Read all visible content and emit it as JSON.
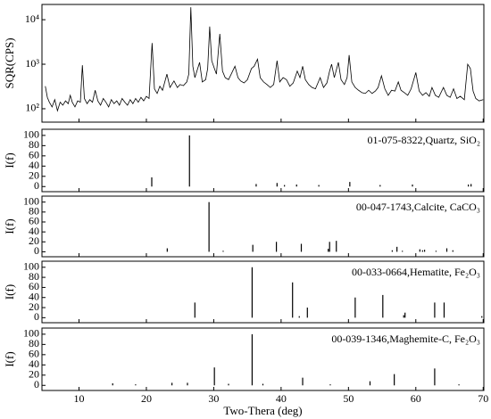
{
  "chart_data": [
    {
      "type": "line",
      "ylabel": "SQR(CPS)",
      "color": "#000000",
      "log_y": true,
      "xlim": [
        4.5,
        70.1
      ],
      "xticks": [
        10,
        20,
        30,
        40,
        50,
        60,
        70
      ],
      "ylim": [
        50,
        22000
      ],
      "yticks": [
        {
          "value": 100,
          "label": "10²"
        },
        {
          "value": 1000,
          "label": "10³"
        },
        {
          "value": 10000,
          "label": "10⁴"
        }
      ],
      "x": [
        5.0,
        5.3,
        5.6,
        6.0,
        6.4,
        6.8,
        7.2,
        7.6,
        8.0,
        8.4,
        8.7,
        9.0,
        9.4,
        9.8,
        10.2,
        10.5,
        10.8,
        11.2,
        11.6,
        12.0,
        12.4,
        12.8,
        13.2,
        13.6,
        14.0,
        14.4,
        14.8,
        15.2,
        15.6,
        16.0,
        16.4,
        16.8,
        17.2,
        17.6,
        18.0,
        18.4,
        18.8,
        19.2,
        19.6,
        20.0,
        20.4,
        20.85,
        21.2,
        21.6,
        22.0,
        22.4,
        23.05,
        23.5,
        24.1,
        24.6,
        25.0,
        25.5,
        26.0,
        26.3,
        26.6,
        26.9,
        27.2,
        27.9,
        28.3,
        28.8,
        29.1,
        29.4,
        29.7,
        30.1,
        30.4,
        30.9,
        31.3,
        31.7,
        32.2,
        32.6,
        33.15,
        33.6,
        34.0,
        34.5,
        35.0,
        35.6,
        36.0,
        36.5,
        36.9,
        37.4,
        37.9,
        38.4,
        38.9,
        39.4,
        39.8,
        40.3,
        40.8,
        41.3,
        41.8,
        42.4,
        42.8,
        43.2,
        43.6,
        44.1,
        44.6,
        45.1,
        45.8,
        46.3,
        46.8,
        47.2,
        47.5,
        47.9,
        48.5,
        48.9,
        49.4,
        49.8,
        50.1,
        50.5,
        51.0,
        51.5,
        52.0,
        52.5,
        53.0,
        53.5,
        54.0,
        54.4,
        54.9,
        55.4,
        55.9,
        56.4,
        56.9,
        57.4,
        57.8,
        58.3,
        58.8,
        59.3,
        60.0,
        60.5,
        61.0,
        61.5,
        62.0,
        62.4,
        62.9,
        63.4,
        64.1,
        64.6,
        65.1,
        65.6,
        66.1,
        66.6,
        67.2,
        67.7,
        68.1,
        68.5,
        68.9,
        69.4,
        70.0
      ],
      "values": [
        320,
        180,
        140,
        110,
        160,
        90,
        140,
        120,
        150,
        130,
        200,
        140,
        110,
        150,
        140,
        950,
        170,
        130,
        160,
        140,
        260,
        150,
        120,
        170,
        140,
        110,
        160,
        130,
        150,
        120,
        170,
        140,
        120,
        160,
        130,
        170,
        140,
        180,
        150,
        190,
        170,
        3000,
        280,
        220,
        320,
        260,
        600,
        300,
        420,
        300,
        350,
        330,
        400,
        600,
        19000,
        900,
        500,
        1100,
        400,
        450,
        800,
        7000,
        1200,
        800,
        600,
        4800,
        700,
        500,
        450,
        600,
        900,
        500,
        420,
        380,
        450,
        800,
        900,
        1300,
        500,
        400,
        350,
        300,
        350,
        1200,
        400,
        500,
        450,
        320,
        380,
        700,
        500,
        900,
        450,
        350,
        300,
        280,
        500,
        300,
        380,
        700,
        1000,
        500,
        1100,
        450,
        350,
        500,
        1600,
        400,
        300,
        260,
        230,
        220,
        260,
        220,
        250,
        300,
        550,
        280,
        200,
        260,
        250,
        400,
        260,
        230,
        200,
        280,
        650,
        250,
        200,
        230,
        190,
        300,
        200,
        180,
        300,
        200,
        180,
        280,
        170,
        190,
        160,
        1000,
        800,
        250,
        170,
        150,
        160
      ]
    },
    {
      "type": "stick",
      "ylabel": "I(f)",
      "label": "01-075-8322,Quartz, SiO₂",
      "color": "#000000",
      "xlim": [
        4.5,
        70.1
      ],
      "xticks": [
        10,
        20,
        30,
        40,
        50,
        60,
        70
      ],
      "ylim": [
        -10,
        112
      ],
      "yticks": [
        0,
        20,
        40,
        60,
        80,
        100
      ],
      "x": [
        20.8,
        26.4,
        36.3,
        39.4,
        40.5,
        42.3,
        45.6,
        50.2,
        54.7,
        59.5,
        67.8,
        68.2
      ],
      "values": [
        18,
        100,
        5,
        7,
        3,
        4,
        3,
        9,
        3,
        4,
        4,
        5
      ]
    },
    {
      "type": "stick",
      "ylabel": "I(f)",
      "label": "00-047-1743,Calcite, CaCO₃",
      "color": "#000000",
      "xlim": [
        4.5,
        70.1
      ],
      "xticks": [
        10,
        20,
        30,
        40,
        50,
        60,
        70
      ],
      "ylim": [
        -10,
        112
      ],
      "yticks": [
        0,
        20,
        40,
        60,
        80,
        100
      ],
      "x": [
        23.1,
        29.3,
        31.4,
        35.8,
        39.3,
        43.0,
        47.0,
        47.2,
        48.2,
        56.5,
        57.2,
        58.0,
        60.6,
        61.0,
        61.3,
        63.0,
        64.6,
        65.5
      ],
      "values": [
        7,
        100,
        2,
        14,
        20,
        16,
        6,
        20,
        22,
        3,
        10,
        2,
        5,
        3,
        4,
        2,
        7,
        3
      ]
    },
    {
      "type": "stick",
      "ylabel": "I(f)",
      "label": "00-033-0664,Hematite, Fe₂O₃",
      "color": "#000000",
      "xlim": [
        4.5,
        70.1
      ],
      "xticks": [
        10,
        20,
        30,
        40,
        50,
        60,
        70
      ],
      "ylim": [
        -10,
        112
      ],
      "yticks": [
        0,
        20,
        40,
        60,
        80,
        100
      ],
      "x": [
        27.2,
        35.7,
        41.7,
        42.7,
        43.9,
        51.0,
        55.1,
        58.2,
        58.4,
        62.8,
        64.2,
        69.8
      ],
      "values": [
        30,
        100,
        70,
        3,
        20,
        40,
        45,
        5,
        10,
        30,
        30,
        3
      ]
    },
    {
      "type": "stick",
      "ylabel": "I(f)",
      "label": "00-039-1346,Maghemite-C, Fe₂O₃",
      "color": "#000000",
      "xlabel": "Two-Thera (deg)",
      "xlim": [
        4.5,
        70.1
      ],
      "xticks": [
        10,
        20,
        30,
        40,
        50,
        60,
        70
      ],
      "ylim": [
        -10,
        112
      ],
      "yticks": [
        0,
        20,
        40,
        60,
        80,
        100
      ],
      "x": [
        15.0,
        18.4,
        23.8,
        26.1,
        30.1,
        32.2,
        35.7,
        37.3,
        43.2,
        47.3,
        53.2,
        56.8,
        62.8,
        66.4
      ],
      "values": [
        4,
        2,
        5,
        5,
        35,
        3,
        100,
        3,
        15,
        2,
        8,
        22,
        33,
        2
      ]
    }
  ]
}
